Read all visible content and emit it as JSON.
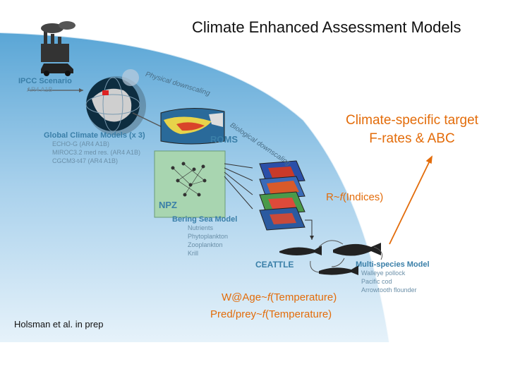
{
  "title": "Climate Enhanced Assessment Models",
  "ipcc": {
    "title": "IPCC Scenario",
    "subtitle": "AR4 A1B"
  },
  "downscaling": {
    "physical": "Physical downscaling",
    "biological": "Biological downscaling"
  },
  "gcm": {
    "title": "Global Climate Models (x 3)",
    "models": [
      "ECHO-G (AR4 A1B)",
      "MIROC3.2 med res. (AR4 A1B)",
      "CGCM3-t47 (AR4 A1B)"
    ]
  },
  "roms": {
    "label": "ROMS"
  },
  "npz": {
    "label": "NPZ",
    "title": "Bering Sea Model",
    "components": [
      "Nutrients",
      "Phytoplankton",
      "Zooplankton",
      "Krill"
    ]
  },
  "ceattle": {
    "label": "CEATTLE"
  },
  "multispecies": {
    "title": "Multi-species Model",
    "species": [
      "Walleye pollock",
      "Pacific cod",
      "Arrowtooth flounder"
    ]
  },
  "target": {
    "line1": "Climate-specific target",
    "line2": "F-rates & ABC"
  },
  "recruitment": {
    "prefix": "R~",
    "f": "f",
    "suffix": "(Indices)"
  },
  "weight": {
    "prefix": "W@Age~",
    "f": "f",
    "suffix": "(Temperature)"
  },
  "predprey": {
    "prefix": "Pred/prey~",
    "f": "f",
    "suffix": "(Temperature)"
  },
  "citation": "Holsman et al. in prep",
  "colors": {
    "accent": "#e36c0a",
    "ocean_light": "#d6eaf6",
    "ocean_dark": "#5aa6d6",
    "npz_green": "#a8d5b0"
  }
}
